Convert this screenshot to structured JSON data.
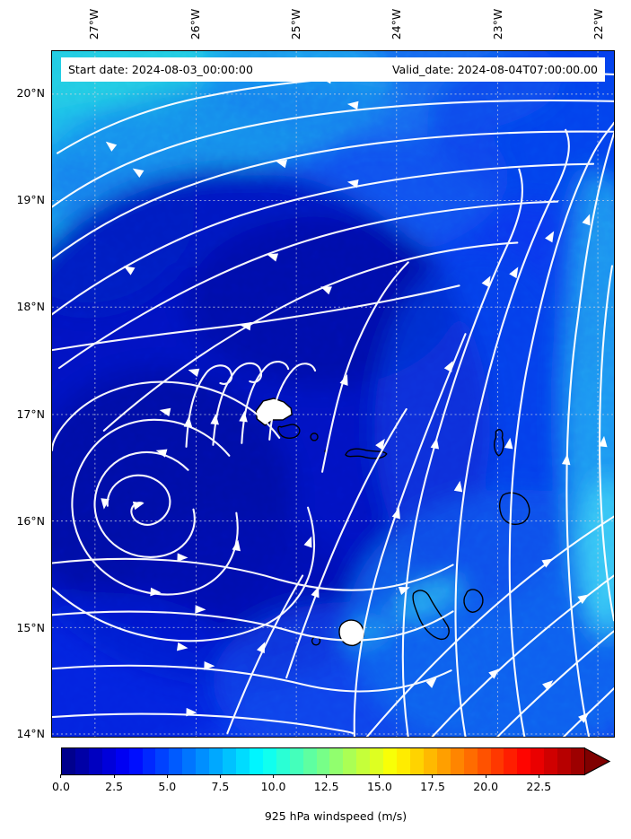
{
  "title_bar": {
    "start": "Start date: 2024-08-03_00:00:00",
    "valid": "Valid_date: 2024-08-04T07:00:00.00"
  },
  "axes": {
    "lon_labels": [
      "27°W",
      "26°W",
      "25°W",
      "24°W",
      "23°W",
      "22°W"
    ],
    "lat_labels": [
      "20°N",
      "19°N",
      "18°N",
      "17°N",
      "16°N",
      "15°N",
      "14°N"
    ]
  },
  "colorbar": {
    "label": "925 hPa windspeed (m/s)",
    "tick_labels": [
      "0.0",
      "2.5",
      "5.0",
      "7.5",
      "10.0",
      "12.5",
      "15.0",
      "17.5",
      "20.0",
      "22.5"
    ],
    "tick_values": [
      0.0,
      2.5,
      5.0,
      7.5,
      10.0,
      12.5,
      15.0,
      17.5,
      20.0,
      22.5
    ],
    "rect_max_value": 24.6,
    "full_max_value": 25.0,
    "n_segments": 39,
    "extend": "max",
    "colormap": "jet",
    "jet_stops": [
      [
        0.0,
        "#000080"
      ],
      [
        0.125,
        "#0000ff"
      ],
      [
        0.375,
        "#00ffff"
      ],
      [
        0.625,
        "#ffff00"
      ],
      [
        0.875,
        "#ff0000"
      ],
      [
        1.0,
        "#800000"
      ]
    ]
  },
  "chart_data": {
    "type": "streamline_map",
    "variable": "925 hPa windspeed (m/s)",
    "start_date": "2024-08-03_00:00:00",
    "valid_date": "2024-08-04T07:00:00.00",
    "colormap": "jet",
    "colorbar_ticks": [
      0.0,
      2.5,
      5.0,
      7.5,
      10.0,
      12.5,
      15.0,
      17.5,
      20.0,
      22.5
    ],
    "colorbar_range": [
      0,
      25
    ],
    "colorbar_extend": "max",
    "lon_gridlines_deg": [
      -27,
      -26,
      -25,
      -24,
      -23,
      -22
    ],
    "lat_gridlines_deg": [
      20,
      19,
      18,
      17,
      16,
      15,
      14
    ],
    "extent": {
      "lon_west": -27.43,
      "lon_east": -21.85,
      "lat_south": 13.97,
      "lat_north": 20.4
    },
    "flow_pattern": {
      "description": "cyclonic (counterclockwise) gyre: westward flow along the top, southward on the west side, eastward along the bottom, northward on the east side",
      "vortex_center": {
        "lon": -26.3,
        "lat": 16.05
      },
      "streamline_color": "#ffffff"
    },
    "windspeed_regions_mps": [
      {
        "where": "northwest corner",
        "approx": 8.5,
        "color": "#35e2cf"
      },
      {
        "where": "gyre interior / west-center",
        "approx": 1.5,
        "color": "#0209a8"
      },
      {
        "where": "eastern edge band",
        "approx": 6.5,
        "color": "#2cb4f2"
      },
      {
        "where": "southeast quadrant",
        "approx": 4.0,
        "color": "#0f66ee"
      },
      {
        "where": "general background",
        "approx": 3.0,
        "color": "#0a38ee"
      }
    ],
    "islands": [
      {
        "approx_lon": -25.0,
        "approx_lat": 17.05,
        "filled_white": true
      },
      {
        "approx_lon": -24.9,
        "approx_lat": 16.85,
        "filled_white": false
      },
      {
        "approx_lon": -24.35,
        "approx_lat": 16.6,
        "filled_white": false
      },
      {
        "approx_lon": -22.9,
        "approx_lat": 16.75,
        "filled_white": false
      },
      {
        "approx_lon": -22.8,
        "approx_lat": 16.1,
        "filled_white": false
      },
      {
        "approx_lon": -23.1,
        "approx_lat": 15.2,
        "filled_white": false
      },
      {
        "approx_lon": -23.45,
        "approx_lat": 15.05,
        "filled_white": false
      },
      {
        "approx_lon": -24.35,
        "approx_lat": 14.9,
        "filled_white": true
      },
      {
        "approx_lon": -24.7,
        "approx_lat": 14.85,
        "filled_white": false
      }
    ]
  }
}
